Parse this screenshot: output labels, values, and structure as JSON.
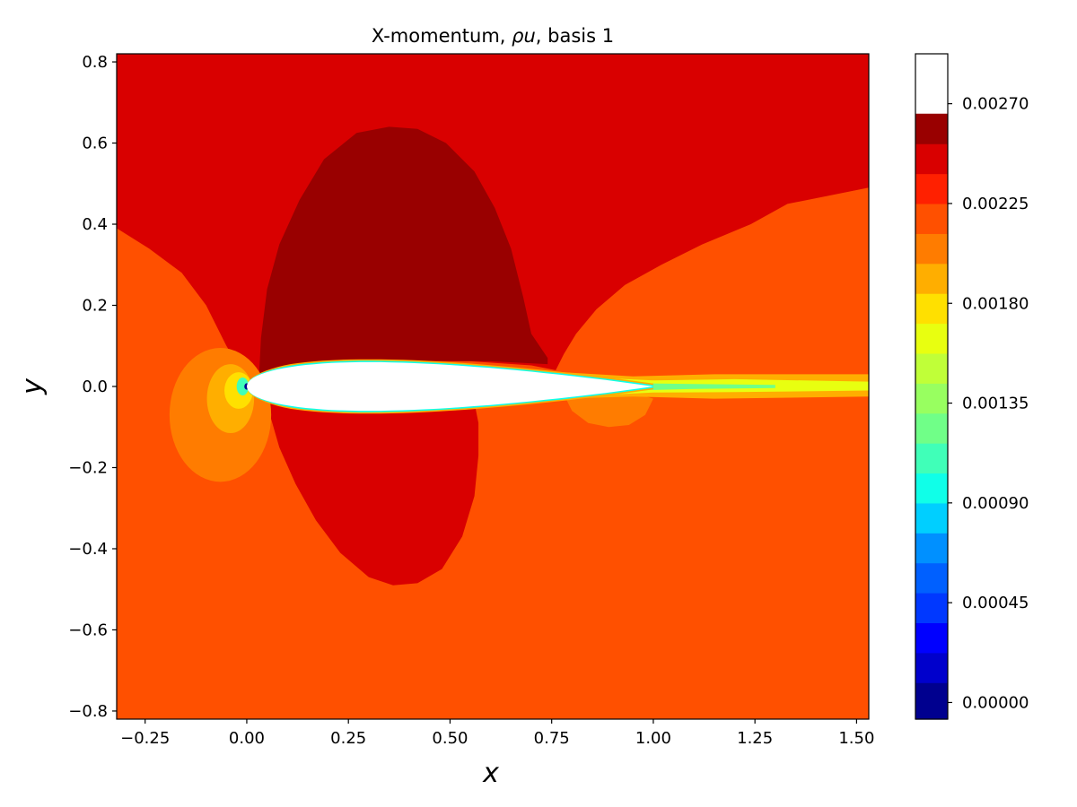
{
  "chart_data": {
    "type": "contour",
    "title_prefix": "X-momentum, ",
    "title_symbol": "ρu",
    "title_suffix": ", basis 1",
    "xlabel": "x",
    "ylabel": "y",
    "xlim": [
      -0.32,
      1.53
    ],
    "ylim": [
      -0.82,
      0.82
    ],
    "x_ticks": [
      -0.25,
      0.0,
      0.25,
      0.5,
      0.75,
      1.0,
      1.25,
      1.5
    ],
    "x_tick_labels": [
      "−0.25",
      "0.00",
      "0.25",
      "0.50",
      "0.75",
      "1.00",
      "1.25",
      "1.50"
    ],
    "y_ticks": [
      0.8,
      0.6,
      0.4,
      0.2,
      0.0,
      -0.2,
      -0.4,
      -0.6,
      -0.8
    ],
    "y_tick_labels": [
      "0.8",
      "0.6",
      "0.4",
      "0.2",
      "0.0",
      "−0.2",
      "−0.4",
      "−0.6",
      "−0.8"
    ],
    "colorbar": {
      "range": [
        -7.5e-05,
        0.002925
      ],
      "levels": [
        -7.5e-05,
        9e-05,
        0.000225,
        0.00036,
        0.000495,
        0.00063,
        0.000765,
        0.0009,
        0.001035,
        0.00117,
        0.001305,
        0.00144,
        0.001575,
        0.00171,
        0.001845,
        0.00198,
        0.002115,
        0.00225,
        0.002385,
        0.00252,
        0.002655,
        0.00279,
        0.002925
      ],
      "colors": [
        "#00008f",
        "#0000cc",
        "#0000ff",
        "#0038ff",
        "#0060ff",
        "#0090ff",
        "#00cfff",
        "#10ffe8",
        "#40ffb8",
        "#70ff88",
        "#98ff60",
        "#c0ff38",
        "#e8ff10",
        "#ffe000",
        "#ffae00",
        "#ff7c00",
        "#ff5000",
        "#ff2000",
        "#d90000",
        "#990000"
      ],
      "ticks": [
        0.0,
        0.00045,
        0.0009,
        0.00135,
        0.0018,
        0.00225,
        0.0027
      ],
      "tick_labels": [
        "0.00000",
        "0.00045",
        "0.00090",
        "0.00135",
        "0.00180",
        "0.00225",
        "0.00270"
      ]
    },
    "field": {
      "background_value": 0.00222,
      "regions": [
        {
          "name": "freestream-upper",
          "value": 0.00246
        },
        {
          "name": "suction-peak",
          "value": 0.0026
        },
        {
          "name": "lower-surface-accel",
          "value": 0.00246
        },
        {
          "name": "stagnation-outer",
          "value": 0.0021
        },
        {
          "name": "stagnation-mid",
          "value": 0.00195
        },
        {
          "name": "stagnation-inner",
          "value": 0.0018
        },
        {
          "name": "stagnation-core",
          "value": 0.0011
        },
        {
          "name": "stagnation-point",
          "value": 0.0
        },
        {
          "name": "wake-deficit-region",
          "value": 0.0021
        },
        {
          "name": "wake-outer",
          "value": 0.00195
        },
        {
          "name": "wake-mid",
          "value": 0.00165
        },
        {
          "name": "wake-inner",
          "value": 0.0012
        }
      ]
    }
  }
}
